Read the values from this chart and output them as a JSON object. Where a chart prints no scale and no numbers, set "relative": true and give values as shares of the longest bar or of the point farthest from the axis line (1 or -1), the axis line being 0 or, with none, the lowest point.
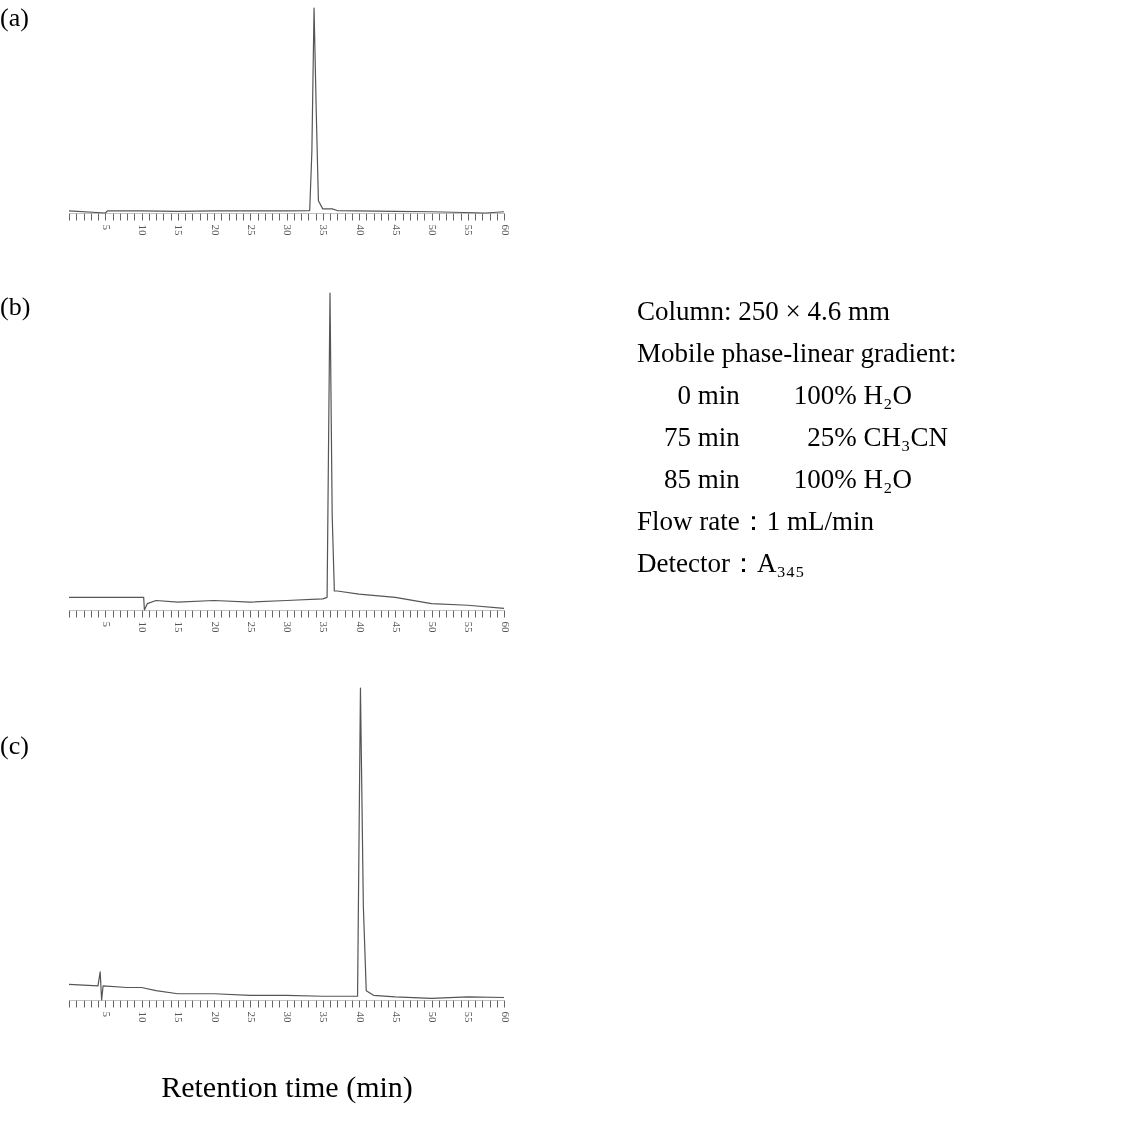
{
  "chart_data": [
    {
      "type": "line",
      "title": "(a)",
      "relative": true,
      "tick_labels": "x",
      "xlim": [
        0,
        60
      ],
      "xticks": [
        {
          "value": 0,
          "label": null
        },
        {
          "value": 1,
          "label": null
        },
        {
          "value": 2,
          "label": null
        },
        {
          "value": 3,
          "label": null
        },
        {
          "value": 4,
          "label": null
        },
        5,
        {
          "value": 6,
          "label": null
        },
        {
          "value": 7,
          "label": null
        },
        {
          "value": 8,
          "label": null
        },
        {
          "value": 9,
          "label": null
        },
        10,
        {
          "value": 11,
          "label": null
        },
        {
          "value": 12,
          "label": null
        },
        {
          "value": 13,
          "label": null
        },
        {
          "value": 14,
          "label": null
        },
        15,
        {
          "value": 16,
          "label": null
        },
        {
          "value": 17,
          "label": null
        },
        {
          "value": 18,
          "label": null
        },
        {
          "value": 19,
          "label": null
        },
        20,
        {
          "value": 21,
          "label": null
        },
        {
          "value": 22,
          "label": null
        },
        {
          "value": 23,
          "label": null
        },
        {
          "value": 24,
          "label": null
        },
        25,
        {
          "value": 26,
          "label": null
        },
        {
          "value": 27,
          "label": null
        },
        {
          "value": 28,
          "label": null
        },
        {
          "value": 29,
          "label": null
        },
        30,
        {
          "value": 31,
          "label": null
        },
        {
          "value": 32,
          "label": null
        },
        {
          "value": 33,
          "label": null
        },
        {
          "value": 34,
          "label": null
        },
        35,
        {
          "value": 36,
          "label": null
        },
        {
          "value": 37,
          "label": null
        },
        {
          "value": 38,
          "label": null
        },
        {
          "value": 39,
          "label": null
        },
        40,
        {
          "value": 41,
          "label": null
        },
        {
          "value": 42,
          "label": null
        },
        {
          "value": 43,
          "label": null
        },
        {
          "value": 44,
          "label": null
        },
        45,
        {
          "value": 46,
          "label": null
        },
        {
          "value": 47,
          "label": null
        },
        {
          "value": 48,
          "label": null
        },
        {
          "value": 49,
          "label": null
        },
        50,
        {
          "value": 51,
          "label": null
        },
        {
          "value": 52,
          "label": null
        },
        {
          "value": 53,
          "label": null
        },
        {
          "value": 54,
          "label": null
        },
        55,
        {
          "value": 56,
          "label": null
        },
        {
          "value": 57,
          "label": null
        },
        {
          "value": 58,
          "label": null
        },
        {
          "value": 59,
          "label": null
        },
        60
      ],
      "series": [
        {
          "color": "#555555",
          "x": [
            0,
            5,
            5.3,
            10,
            15,
            20,
            25,
            30,
            33.2,
            33.5,
            33.8,
            34.1,
            34.4,
            35,
            36.3,
            37,
            45,
            50,
            57.5,
            60
          ],
          "values": [
            0.01,
            0.0,
            0.01,
            0.01,
            0.008,
            0.01,
            0.01,
            0.01,
            0.012,
            0.3,
            1,
            0.5,
            0.06,
            0.02,
            0.02,
            0.012,
            0.008,
            0.006,
            0.0,
            0.006
          ]
        }
      ]
    },
    {
      "type": "line",
      "title": "(b)",
      "relative": true,
      "tick_labels": "x",
      "xlim": [
        0,
        60
      ],
      "xticks": [
        {
          "value": 0,
          "label": null
        },
        {
          "value": 1,
          "label": null
        },
        {
          "value": 2,
          "label": null
        },
        {
          "value": 3,
          "label": null
        },
        {
          "value": 4,
          "label": null
        },
        5,
        {
          "value": 6,
          "label": null
        },
        {
          "value": 7,
          "label": null
        },
        {
          "value": 8,
          "label": null
        },
        {
          "value": 9,
          "label": null
        },
        10,
        {
          "value": 11,
          "label": null
        },
        {
          "value": 12,
          "label": null
        },
        {
          "value": 13,
          "label": null
        },
        {
          "value": 14,
          "label": null
        },
        15,
        {
          "value": 16,
          "label": null
        },
        {
          "value": 17,
          "label": null
        },
        {
          "value": 18,
          "label": null
        },
        {
          "value": 19,
          "label": null
        },
        20,
        {
          "value": 21,
          "label": null
        },
        {
          "value": 22,
          "label": null
        },
        {
          "value": 23,
          "label": null
        },
        {
          "value": 24,
          "label": null
        },
        25,
        {
          "value": 26,
          "label": null
        },
        {
          "value": 27,
          "label": null
        },
        {
          "value": 28,
          "label": null
        },
        {
          "value": 29,
          "label": null
        },
        30,
        {
          "value": 31,
          "label": null
        },
        {
          "value": 32,
          "label": null
        },
        {
          "value": 33,
          "label": null
        },
        {
          "value": 34,
          "label": null
        },
        35,
        {
          "value": 36,
          "label": null
        },
        {
          "value": 37,
          "label": null
        },
        {
          "value": 38,
          "label": null
        },
        {
          "value": 39,
          "label": null
        },
        40,
        {
          "value": 41,
          "label": null
        },
        {
          "value": 42,
          "label": null
        },
        {
          "value": 43,
          "label": null
        },
        {
          "value": 44,
          "label": null
        },
        45,
        {
          "value": 46,
          "label": null
        },
        {
          "value": 47,
          "label": null
        },
        {
          "value": 48,
          "label": null
        },
        {
          "value": 49,
          "label": null
        },
        50,
        {
          "value": 51,
          "label": null
        },
        {
          "value": 52,
          "label": null
        },
        {
          "value": 53,
          "label": null
        },
        {
          "value": 54,
          "label": null
        },
        55,
        {
          "value": 56,
          "label": null
        },
        {
          "value": 57,
          "label": null
        },
        {
          "value": 58,
          "label": null
        },
        {
          "value": 59,
          "label": null
        },
        60
      ],
      "series": [
        {
          "color": "#555555",
          "x": [
            0,
            10.3,
            10.4,
            10.8,
            12,
            15,
            20,
            25,
            30,
            35,
            35.6,
            36,
            36.3,
            36.6,
            37,
            40,
            45,
            50,
            55,
            60
          ],
          "values": [
            0.04,
            0.04,
            0,
            0.02,
            0.03,
            0.025,
            0.03,
            0.025,
            0.03,
            0.035,
            0.04,
            1,
            0.3,
            0.06,
            0.06,
            0.05,
            0.04,
            0.02,
            0.015,
            0.005
          ]
        }
      ]
    },
    {
      "type": "line",
      "title": "(c)",
      "xlabel": "Retention time (min)",
      "relative": true,
      "tick_labels": "x",
      "xlim": [
        0,
        60
      ],
      "xticks": [
        {
          "value": 0,
          "label": null
        },
        {
          "value": 1,
          "label": null
        },
        {
          "value": 2,
          "label": null
        },
        {
          "value": 3,
          "label": null
        },
        {
          "value": 4,
          "label": null
        },
        5,
        {
          "value": 6,
          "label": null
        },
        {
          "value": 7,
          "label": null
        },
        {
          "value": 8,
          "label": null
        },
        {
          "value": 9,
          "label": null
        },
        10,
        {
          "value": 11,
          "label": null
        },
        {
          "value": 12,
          "label": null
        },
        {
          "value": 13,
          "label": null
        },
        {
          "value": 14,
          "label": null
        },
        15,
        {
          "value": 16,
          "label": null
        },
        {
          "value": 17,
          "label": null
        },
        {
          "value": 18,
          "label": null
        },
        {
          "value": 19,
          "label": null
        },
        20,
        {
          "value": 21,
          "label": null
        },
        {
          "value": 22,
          "label": null
        },
        {
          "value": 23,
          "label": null
        },
        {
          "value": 24,
          "label": null
        },
        25,
        {
          "value": 26,
          "label": null
        },
        {
          "value": 27,
          "label": null
        },
        {
          "value": 28,
          "label": null
        },
        {
          "value": 29,
          "label": null
        },
        30,
        {
          "value": 31,
          "label": null
        },
        {
          "value": 32,
          "label": null
        },
        {
          "value": 33,
          "label": null
        },
        {
          "value": 34,
          "label": null
        },
        35,
        {
          "value": 36,
          "label": null
        },
        {
          "value": 37,
          "label": null
        },
        {
          "value": 38,
          "label": null
        },
        {
          "value": 39,
          "label": null
        },
        40,
        {
          "value": 41,
          "label": null
        },
        {
          "value": 42,
          "label": null
        },
        {
          "value": 43,
          "label": null
        },
        {
          "value": 44,
          "label": null
        },
        45,
        {
          "value": 46,
          "label": null
        },
        {
          "value": 47,
          "label": null
        },
        {
          "value": 48,
          "label": null
        },
        {
          "value": 49,
          "label": null
        },
        50,
        {
          "value": 51,
          "label": null
        },
        {
          "value": 52,
          "label": null
        },
        {
          "value": 53,
          "label": null
        },
        {
          "value": 54,
          "label": null
        },
        55,
        {
          "value": 56,
          "label": null
        },
        {
          "value": 57,
          "label": null
        },
        {
          "value": 58,
          "label": null
        },
        {
          "value": 59,
          "label": null
        },
        60
      ],
      "series": [
        {
          "color": "#555555",
          "x": [
            0,
            4,
            4.3,
            4.5,
            4.7,
            8,
            10,
            12,
            15,
            20,
            25,
            30,
            35,
            39.8,
            40.2,
            40.6,
            41,
            42,
            45,
            50,
            55,
            60
          ],
          "values": [
            0.05,
            0.045,
            0.09,
            0.0,
            0.045,
            0.04,
            0.04,
            0.03,
            0.02,
            0.02,
            0.015,
            0.015,
            0.012,
            0.012,
            1,
            0.3,
            0.03,
            0.015,
            0.01,
            0.005,
            0.01,
            0.008
          ]
        }
      ]
    },
    {
      "type": "other",
      "annotations": [
        "Column: 250 × 4.6 mm",
        "Mobile phase-linear gradient:",
        "      0 min        100% H₂O",
        "    75 min          25% CH₃CN",
        "    85 min        100% H₂O",
        "Flow rate：1 mL/min",
        "Detector：A₃₄₅"
      ]
    }
  ]
}
